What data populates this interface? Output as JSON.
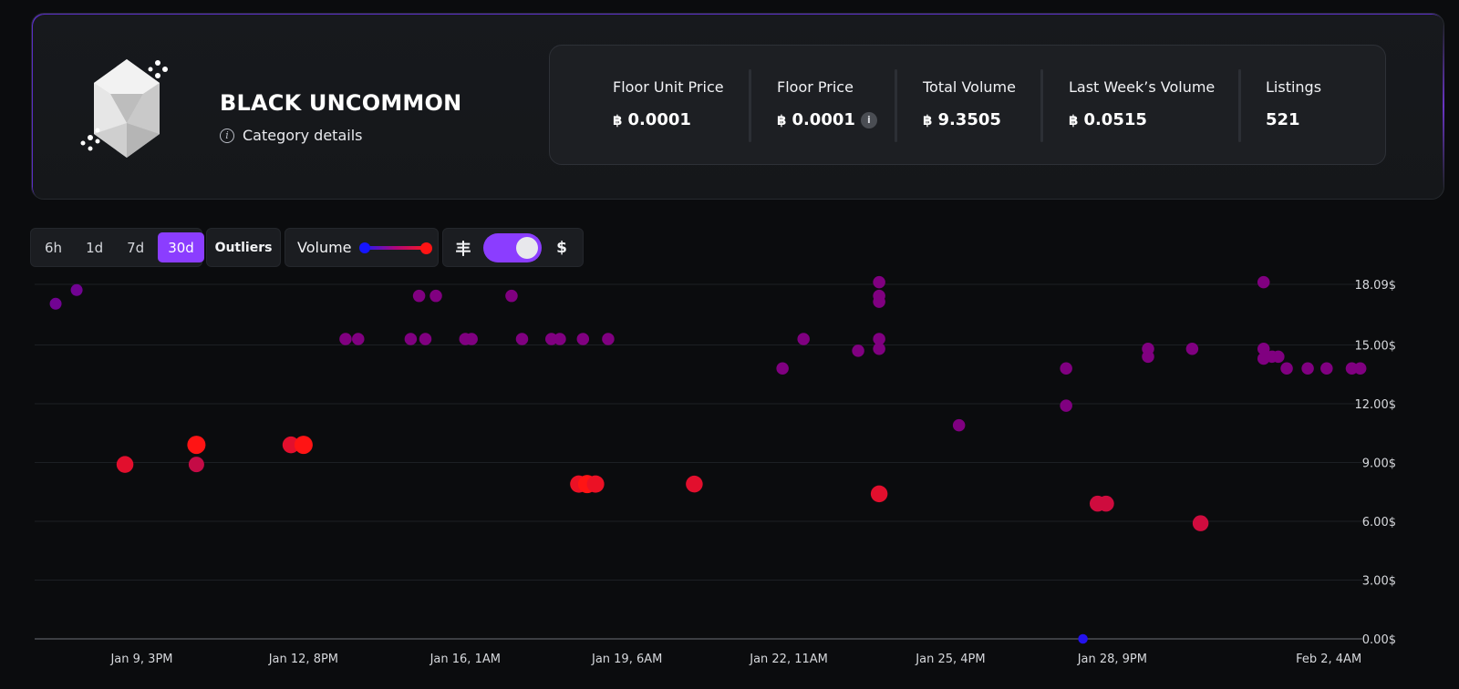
{
  "header": {
    "title": "BLACK UNCOMMON",
    "category_link": "Category details",
    "stats": [
      {
        "label": "Floor Unit Price",
        "value": "0.0001",
        "currency": "฿",
        "info": false
      },
      {
        "label": "Floor Price",
        "value": "0.0001",
        "currency": "฿",
        "info": true
      },
      {
        "label": "Total Volume",
        "value": "9.3505",
        "currency": "฿",
        "info": false
      },
      {
        "label": "Last Week’s Volume",
        "value": "0.0515",
        "currency": "฿",
        "info": false
      },
      {
        "label": "Listings",
        "value": "521",
        "currency": "",
        "info": false
      }
    ]
  },
  "controls": {
    "timeframes": [
      "6h",
      "1d",
      "7d",
      "30d"
    ],
    "active_timeframe": "30d",
    "outliers_label": "Outliers",
    "volume_label": "Volume",
    "currency_left_symbol": "丰",
    "currency_right_symbol": "$",
    "currency_toggle_on": true
  },
  "colors": {
    "accent": "#8b3dff",
    "low_volume": "#1515ff",
    "mid_volume": "#800080",
    "high_volume": "#ff1414"
  },
  "chart_data": {
    "type": "scatter",
    "x_ticks": [
      "Jan 9, 3PM",
      "Jan 12, 8PM",
      "Jan 16, 1AM",
      "Jan 19, 6AM",
      "Jan 22, 11AM",
      "Jan 25, 4PM",
      "Jan 28, 9PM",
      "Feb 2, 4AM"
    ],
    "y_ticks": [
      "0.00$",
      "3.00$",
      "6.00$",
      "9.00$",
      "12.00$",
      "15.00$",
      "18.09$"
    ],
    "y_values": [
      0,
      3,
      6,
      9,
      12,
      15,
      18.09
    ],
    "ylim": [
      0,
      18.09
    ],
    "grid": true,
    "size_encodes": "volume",
    "color_encodes": "volume",
    "points": [
      {
        "x": "Jan 7, 10PM",
        "y": 17.1,
        "v": 0.3
      },
      {
        "x": "Jan 8, 8AM",
        "y": 17.8,
        "v": 0.3
      },
      {
        "x": "Jan 9, 7AM",
        "y": 8.9,
        "v": 0.85
      },
      {
        "x": "Jan 10, 5PM",
        "y": 9.9,
        "v": 1.0
      },
      {
        "x": "Jan 10, 5PM",
        "y": 8.9,
        "v": 0.7
      },
      {
        "x": "Jan 12, 2PM",
        "y": 9.9,
        "v": 0.85
      },
      {
        "x": "Jan 12, 8PM",
        "y": 9.9,
        "v": 1.0
      },
      {
        "x": "Jan 13, 4PM",
        "y": 15.3,
        "v": 0.35
      },
      {
        "x": "Jan 13, 10PM",
        "y": 15.3,
        "v": 0.35
      },
      {
        "x": "Jan 14, 11PM",
        "y": 15.3,
        "v": 0.35
      },
      {
        "x": "Jan 15, 3AM",
        "y": 17.5,
        "v": 0.35
      },
      {
        "x": "Jan 15, 6AM",
        "y": 15.3,
        "v": 0.35
      },
      {
        "x": "Jan 15, 11AM",
        "y": 17.5,
        "v": 0.35
      },
      {
        "x": "Jan 16, 1AM",
        "y": 15.3,
        "v": 0.35
      },
      {
        "x": "Jan 16, 4AM",
        "y": 15.3,
        "v": 0.35
      },
      {
        "x": "Jan 16, 11PM",
        "y": 17.5,
        "v": 0.35
      },
      {
        "x": "Jan 17, 4AM",
        "y": 15.3,
        "v": 0.35
      },
      {
        "x": "Jan 17, 6PM",
        "y": 15.3,
        "v": 0.35
      },
      {
        "x": "Jan 17, 10PM",
        "y": 15.3,
        "v": 0.35
      },
      {
        "x": "Jan 18, 7AM",
        "y": 7.9,
        "v": 0.9
      },
      {
        "x": "Jan 18, 9AM",
        "y": 15.3,
        "v": 0.35
      },
      {
        "x": "Jan 18, 11AM",
        "y": 7.9,
        "v": 1.0
      },
      {
        "x": "Jan 18, 3PM",
        "y": 7.9,
        "v": 0.9
      },
      {
        "x": "Jan 18, 9PM",
        "y": 15.3,
        "v": 0.35
      },
      {
        "x": "Jan 20, 2PM",
        "y": 7.9,
        "v": 0.85
      },
      {
        "x": "Jan 22, 8AM",
        "y": 13.8,
        "v": 0.35
      },
      {
        "x": "Jan 22, 6PM",
        "y": 15.3,
        "v": 0.35
      },
      {
        "x": "Jan 23, 8PM",
        "y": 14.7,
        "v": 0.35
      },
      {
        "x": "Jan 24, 6AM",
        "y": 18.2,
        "v": 0.35
      },
      {
        "x": "Jan 24, 6AM",
        "y": 17.5,
        "v": 0.35
      },
      {
        "x": "Jan 24, 6AM",
        "y": 17.2,
        "v": 0.35
      },
      {
        "x": "Jan 24, 6AM",
        "y": 15.3,
        "v": 0.35
      },
      {
        "x": "Jan 24, 6AM",
        "y": 14.8,
        "v": 0.35
      },
      {
        "x": "Jan 24, 6AM",
        "y": 7.4,
        "v": 0.85
      },
      {
        "x": "Jan 25, 8PM",
        "y": 10.9,
        "v": 0.35
      },
      {
        "x": "Jan 27, 11PM",
        "y": 13.8,
        "v": 0.35
      },
      {
        "x": "Jan 27, 11PM",
        "y": 11.9,
        "v": 0.35
      },
      {
        "x": "Jan 28, 7AM",
        "y": 0.0,
        "v": 0.05
      },
      {
        "x": "Jan 28, 2PM",
        "y": 6.9,
        "v": 0.75
      },
      {
        "x": "Jan 28, 6PM",
        "y": 6.9,
        "v": 0.75
      },
      {
        "x": "Jan 29, 2PM",
        "y": 14.8,
        "v": 0.35
      },
      {
        "x": "Jan 29, 2PM",
        "y": 14.4,
        "v": 0.35
      },
      {
        "x": "Jan 30, 11AM",
        "y": 14.8,
        "v": 0.35
      },
      {
        "x": "Jan 30, 3PM",
        "y": 5.9,
        "v": 0.75
      },
      {
        "x": "Jan 31, 9PM",
        "y": 18.2,
        "v": 0.35
      },
      {
        "x": "Jan 31, 9PM",
        "y": 14.8,
        "v": 0.35
      },
      {
        "x": "Jan 31, 9PM",
        "y": 14.3,
        "v": 0.35
      },
      {
        "x": "Feb 1, 1AM",
        "y": 14.4,
        "v": 0.35
      },
      {
        "x": "Feb 1, 4AM",
        "y": 14.4,
        "v": 0.35
      },
      {
        "x": "Feb 1, 8AM",
        "y": 13.8,
        "v": 0.35
      },
      {
        "x": "Feb 1, 6PM",
        "y": 13.8,
        "v": 0.35
      },
      {
        "x": "Feb 2, 3AM",
        "y": 13.8,
        "v": 0.35
      },
      {
        "x": "Feb 2, 3PM",
        "y": 13.8,
        "v": 0.35
      },
      {
        "x": "Feb 2, 7PM",
        "y": 13.8,
        "v": 0.35
      }
    ]
  }
}
